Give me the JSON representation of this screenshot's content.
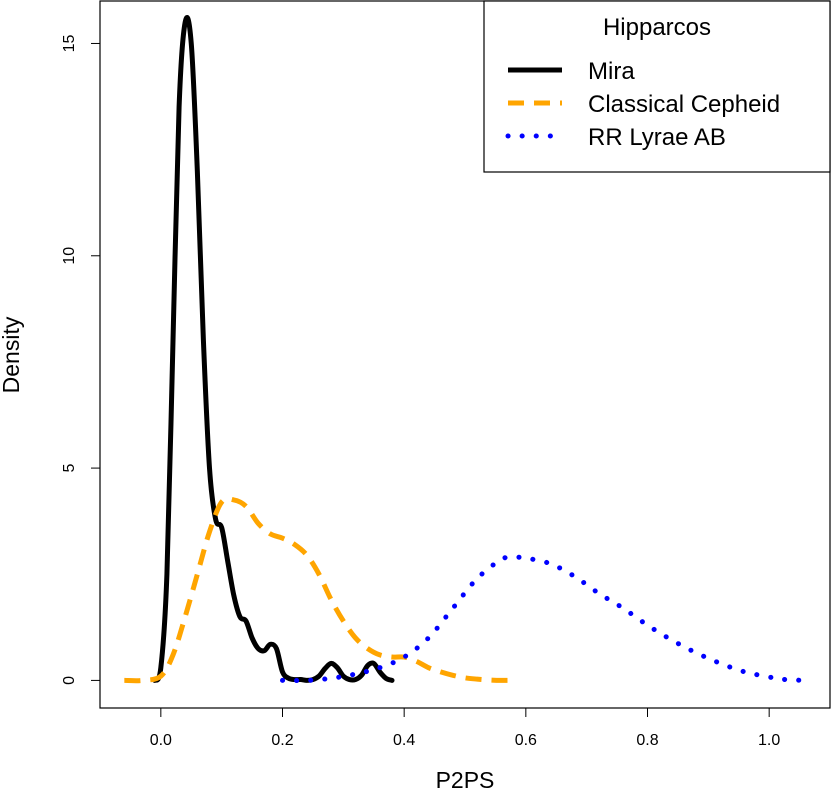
{
  "chart_data": {
    "type": "line",
    "xlabel": "P2PS",
    "ylabel": "Density",
    "xlim": [
      -0.1,
      1.1
    ],
    "ylim": [
      -0.65,
      16.0
    ],
    "xticks": [
      "0.0",
      "0.2",
      "0.4",
      "0.6",
      "0.8",
      "1.0"
    ],
    "yticks": [
      "0",
      "5",
      "10",
      "15"
    ],
    "legend": {
      "title": "Hipparcos",
      "placement": "top-right"
    },
    "series": [
      {
        "name": "Mira",
        "color": "#000000",
        "style": "solid",
        "x": [
          -0.01,
          0.0,
          0.01,
          0.02,
          0.03,
          0.04,
          0.05,
          0.06,
          0.07,
          0.08,
          0.09,
          0.1,
          0.11,
          0.12,
          0.13,
          0.14,
          0.15,
          0.16,
          0.17,
          0.18,
          0.19,
          0.2,
          0.21,
          0.22,
          0.23,
          0.24,
          0.25,
          0.26,
          0.27,
          0.28,
          0.29,
          0.3,
          0.31,
          0.32,
          0.33,
          0.34,
          0.35,
          0.36,
          0.37,
          0.38
        ],
        "y": [
          0.0,
          0.3,
          2.5,
          8.0,
          13.5,
          15.5,
          15.0,
          12.0,
          8.0,
          5.0,
          3.8,
          3.6,
          2.8,
          2.0,
          1.5,
          1.4,
          1.0,
          0.75,
          0.7,
          0.85,
          0.75,
          0.2,
          0.05,
          0.02,
          0.02,
          0.0,
          0.02,
          0.1,
          0.28,
          0.4,
          0.3,
          0.1,
          0.02,
          0.02,
          0.12,
          0.35,
          0.4,
          0.2,
          0.05,
          0.0
        ]
      },
      {
        "name": "Classical Cepheid",
        "color": "#FFA500",
        "style": "dashed",
        "x": [
          -0.06,
          -0.03,
          0.0,
          0.02,
          0.04,
          0.06,
          0.08,
          0.1,
          0.12,
          0.14,
          0.16,
          0.18,
          0.2,
          0.22,
          0.24,
          0.26,
          0.28,
          0.3,
          0.32,
          0.34,
          0.36,
          0.38,
          0.4,
          0.42,
          0.44,
          0.46,
          0.48,
          0.5,
          0.52,
          0.54,
          0.56,
          0.58
        ],
        "y": [
          0.0,
          0.0,
          0.1,
          0.6,
          1.5,
          2.5,
          3.5,
          4.2,
          4.25,
          4.1,
          3.7,
          3.45,
          3.35,
          3.2,
          2.95,
          2.5,
          1.9,
          1.4,
          1.0,
          0.75,
          0.6,
          0.55,
          0.55,
          0.45,
          0.3,
          0.2,
          0.12,
          0.06,
          0.03,
          0.01,
          0.0,
          0.0
        ]
      },
      {
        "name": "RR Lyrae AB",
        "color": "#0000FF",
        "style": "dotted",
        "x": [
          0.2,
          0.24,
          0.28,
          0.32,
          0.36,
          0.4,
          0.44,
          0.48,
          0.52,
          0.56,
          0.58,
          0.6,
          0.64,
          0.68,
          0.72,
          0.76,
          0.8,
          0.84,
          0.88,
          0.92,
          0.96,
          1.0,
          1.02,
          1.04,
          1.06
        ],
        "y": [
          0.0,
          0.0,
          0.05,
          0.15,
          0.3,
          0.55,
          1.0,
          1.7,
          2.4,
          2.85,
          2.9,
          2.88,
          2.75,
          2.45,
          2.05,
          1.7,
          1.3,
          0.95,
          0.65,
          0.4,
          0.2,
          0.08,
          0.03,
          0.01,
          0.0
        ]
      }
    ]
  }
}
